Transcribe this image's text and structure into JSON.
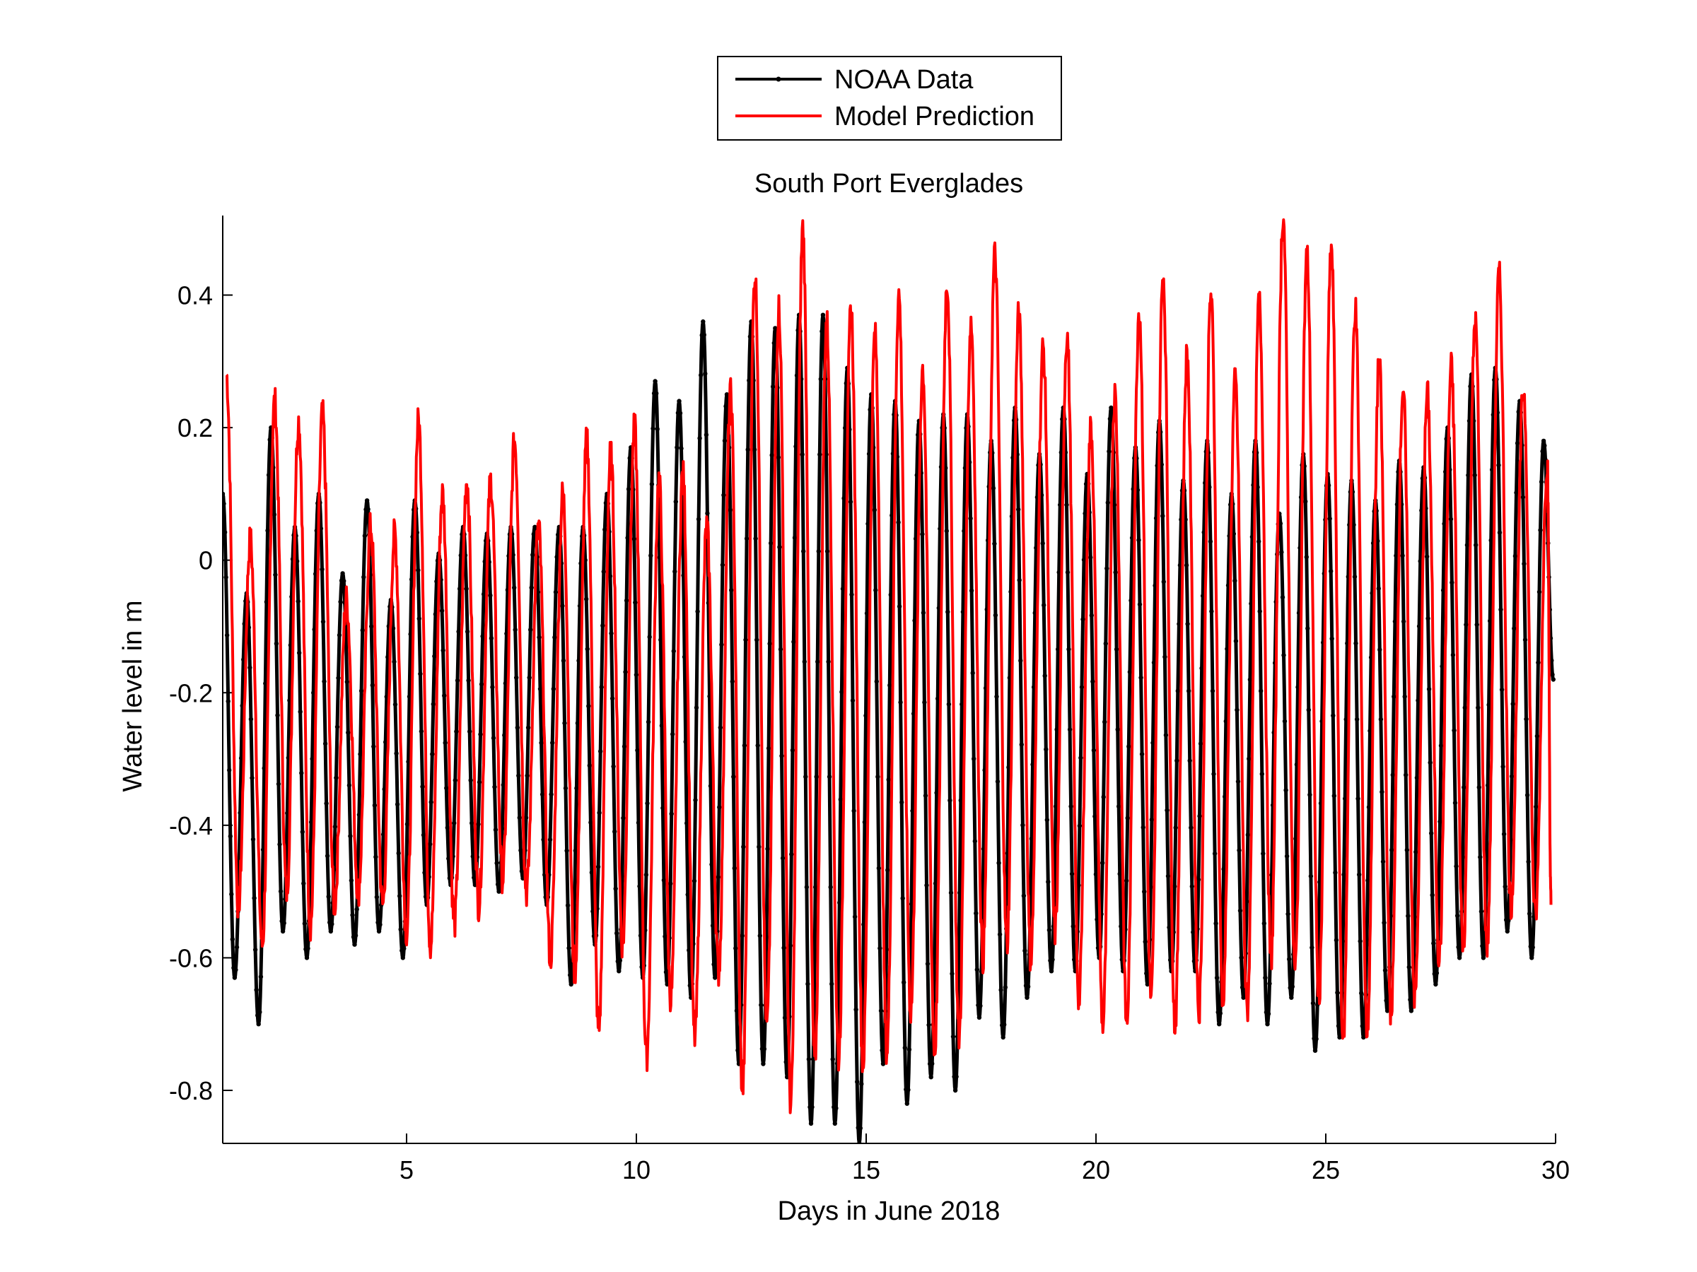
{
  "chart_data": {
    "type": "line",
    "title": "South Port Everglades",
    "xlabel": "Days in June 2018",
    "ylabel": "Water level in m",
    "xlim": [
      1,
      30
    ],
    "ylim": [
      -0.88,
      0.52
    ],
    "xticks": [
      5,
      10,
      15,
      20,
      25,
      30
    ],
    "xtick_labels": [
      "5",
      "10",
      "15",
      "20",
      "25",
      "30"
    ],
    "yticks": [
      -0.8,
      -0.6,
      -0.4,
      -0.2,
      0,
      0.2,
      0.4
    ],
    "ytick_labels": [
      "-0.8",
      "-0.6",
      "-0.4",
      "-0.2",
      "0",
      "0.2",
      "0.4"
    ],
    "grid": false,
    "legend_position": "top-center-outside",
    "tidal_period_days": 0.5175,
    "series": [
      {
        "name": "NOAA Data",
        "color": "#000000",
        "marker": "dot",
        "peak_times": [
          1.0,
          1.52,
          2.05,
          2.57,
          3.09,
          3.61,
          4.14,
          4.66,
          5.18,
          5.7,
          6.23,
          6.75,
          7.27,
          7.79,
          8.32,
          8.84,
          9.36,
          9.88,
          10.41,
          10.93,
          11.45,
          11.97,
          12.5,
          13.02,
          13.54,
          14.06,
          14.59,
          15.11,
          15.63,
          16.15,
          16.68,
          17.2,
          17.72,
          18.24,
          18.77,
          19.29,
          19.81,
          20.33,
          20.86,
          21.38,
          21.9,
          22.42,
          22.95,
          23.47,
          23.99,
          24.51,
          25.04,
          25.56,
          26.08,
          26.6,
          27.13,
          27.65,
          28.17,
          28.69,
          29.22,
          29.74
        ],
        "peak_values": [
          0.1,
          -0.05,
          0.2,
          0.05,
          0.1,
          -0.02,
          0.09,
          -0.06,
          0.09,
          0.01,
          0.05,
          0.04,
          0.05,
          0.05,
          0.05,
          0.05,
          0.1,
          0.17,
          0.27,
          0.24,
          0.36,
          0.25,
          0.36,
          0.35,
          0.37,
          0.37,
          0.29,
          0.25,
          0.24,
          0.21,
          0.22,
          0.22,
          0.18,
          0.23,
          0.16,
          0.23,
          0.13,
          0.23,
          0.17,
          0.21,
          0.12,
          0.18,
          0.1,
          0.18,
          0.07,
          0.16,
          0.13,
          0.12,
          0.09,
          0.15,
          0.14,
          0.2,
          0.28,
          0.29,
          0.24,
          0.18
        ],
        "trough_times": [
          1.26,
          1.78,
          2.31,
          2.83,
          3.35,
          3.87,
          4.4,
          4.92,
          5.44,
          5.96,
          6.49,
          7.01,
          7.53,
          8.05,
          8.58,
          9.1,
          9.62,
          10.14,
          10.67,
          11.19,
          11.71,
          12.23,
          12.76,
          13.28,
          13.8,
          14.32,
          14.85,
          15.37,
          15.89,
          16.41,
          16.94,
          17.46,
          17.98,
          18.5,
          19.03,
          19.55,
          20.07,
          20.59,
          21.12,
          21.64,
          22.16,
          22.68,
          23.21,
          23.73,
          24.25,
          24.77,
          25.3,
          25.82,
          26.34,
          26.86,
          27.39,
          27.91,
          28.43,
          28.95,
          29.48,
          29.95
        ],
        "trough_values": [
          -0.63,
          -0.7,
          -0.56,
          -0.6,
          -0.56,
          -0.58,
          -0.56,
          -0.6,
          -0.52,
          -0.49,
          -0.49,
          -0.5,
          -0.48,
          -0.52,
          -0.64,
          -0.58,
          -0.62,
          -0.63,
          -0.64,
          -0.66,
          -0.63,
          -0.76,
          -0.76,
          -0.78,
          -0.85,
          -0.85,
          -0.88,
          -0.76,
          -0.82,
          -0.78,
          -0.8,
          -0.69,
          -0.72,
          -0.66,
          -0.62,
          -0.62,
          -0.6,
          -0.62,
          -0.64,
          -0.62,
          -0.62,
          -0.7,
          -0.66,
          -0.7,
          -0.66,
          -0.74,
          -0.72,
          -0.72,
          -0.68,
          -0.68,
          -0.64,
          -0.6,
          -0.6,
          -0.56,
          -0.6,
          -0.18
        ]
      },
      {
        "name": "Model Prediction",
        "color": "#ff0000",
        "marker": "none",
        "peak_times": [
          1.08,
          1.6,
          2.13,
          2.65,
          3.17,
          3.69,
          4.22,
          4.74,
          5.26,
          5.78,
          6.31,
          6.83,
          7.35,
          7.87,
          8.4,
          8.92,
          9.44,
          9.96,
          10.49,
          11.01,
          11.53,
          12.05,
          12.58,
          13.1,
          13.62,
          14.14,
          14.67,
          15.19,
          15.71,
          16.23,
          16.76,
          17.28,
          17.8,
          18.32,
          18.85,
          19.37,
          19.89,
          20.41,
          20.94,
          21.46,
          21.98,
          22.5,
          23.03,
          23.55,
          24.07,
          24.59,
          25.12,
          25.64,
          26.16,
          26.68,
          27.21,
          27.73,
          28.25,
          28.77,
          29.3,
          29.82
        ],
        "peak_values": [
          0.28,
          0.03,
          0.24,
          0.21,
          0.22,
          -0.06,
          0.05,
          0.04,
          0.21,
          0.1,
          0.12,
          0.12,
          0.18,
          0.05,
          0.1,
          0.18,
          0.16,
          0.2,
          0.12,
          0.13,
          0.05,
          0.25,
          0.43,
          0.38,
          0.5,
          0.36,
          0.38,
          0.34,
          0.4,
          0.29,
          0.42,
          0.36,
          0.46,
          0.37,
          0.32,
          0.34,
          0.2,
          0.25,
          0.38,
          0.43,
          0.31,
          0.4,
          0.27,
          0.39,
          0.52,
          0.46,
          0.47,
          0.38,
          0.3,
          0.26,
          0.25,
          0.29,
          0.36,
          0.43,
          0.26,
          0.15
        ],
        "trough_times": [
          1.34,
          1.86,
          2.39,
          2.91,
          3.43,
          3.95,
          4.48,
          5.0,
          5.52,
          6.04,
          6.57,
          7.09,
          7.61,
          8.13,
          8.66,
          9.18,
          9.7,
          10.22,
          10.75,
          11.27,
          11.79,
          12.31,
          12.84,
          13.36,
          13.88,
          14.4,
          14.93,
          15.45,
          15.97,
          16.49,
          17.02,
          17.54,
          18.06,
          18.58,
          19.11,
          19.63,
          20.15,
          20.67,
          21.2,
          21.72,
          22.24,
          22.76,
          23.29,
          23.81,
          24.33,
          24.85,
          25.38,
          25.9,
          26.42,
          26.94,
          27.47,
          27.99,
          28.51,
          29.03,
          29.56,
          29.9
        ],
        "trough_values": [
          -0.52,
          -0.58,
          -0.5,
          -0.55,
          -0.52,
          -0.5,
          -0.52,
          -0.56,
          -0.58,
          -0.55,
          -0.52,
          -0.48,
          -0.5,
          -0.6,
          -0.62,
          -0.71,
          -0.58,
          -0.75,
          -0.66,
          -0.72,
          -0.62,
          -0.8,
          -0.7,
          -0.82,
          -0.76,
          -0.75,
          -0.76,
          -0.74,
          -0.68,
          -0.74,
          -0.72,
          -0.6,
          -0.58,
          -0.6,
          -0.56,
          -0.66,
          -0.7,
          -0.7,
          -0.66,
          -0.7,
          -0.68,
          -0.66,
          -0.68,
          -0.6,
          -0.62,
          -0.66,
          -0.72,
          -0.71,
          -0.68,
          -0.66,
          -0.6,
          -0.58,
          -0.58,
          -0.52,
          -0.54,
          -0.52
        ]
      }
    ]
  }
}
